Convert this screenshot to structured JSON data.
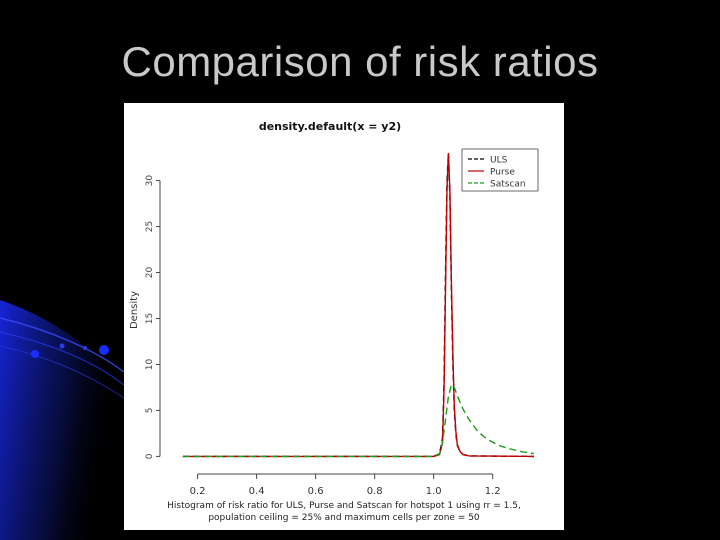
{
  "slide": {
    "title": "Comparison of risk ratios"
  },
  "colors": {
    "background": "#000000",
    "title_text": "#c9c9c9",
    "decor_blue": "#1a2cff"
  },
  "chart_data": {
    "type": "line",
    "title": "density.default(x = y2)",
    "xlabel": "Histogram of risk ratio for ULS, Purse and Satscan for hotspot 1 using rr = 1.5,",
    "xlabel_line2": "population ceiling = 25% and maximum cells per zone = 50",
    "ylabel": "Density",
    "xlim": [
      0.12,
      1.34
    ],
    "ylim": [
      -0.5,
      33
    ],
    "x_ticks": [
      0.2,
      0.4,
      0.6,
      0.8,
      1.0,
      1.2
    ],
    "x_tick_labels": [
      "0.2",
      "0.4",
      "0.6",
      "0.8",
      "1.0",
      "1.2"
    ],
    "y_ticks": [
      0,
      5,
      10,
      15,
      20,
      25,
      30
    ],
    "y_tick_labels": [
      "0",
      "5",
      "10",
      "15",
      "20",
      "25",
      "30"
    ],
    "legend_position": "top-right",
    "series": [
      {
        "name": "ULS",
        "color": "#000000",
        "dash": "6 4",
        "x": [
          0.15,
          1.0,
          1.02,
          1.03,
          1.035,
          1.04,
          1.045,
          1.05,
          1.055,
          1.06,
          1.065,
          1.07,
          1.075,
          1.08,
          1.09,
          1.1,
          1.12,
          1.34
        ],
        "y": [
          0,
          0,
          0.3,
          2,
          8,
          20,
          30,
          33,
          28,
          18,
          10,
          5,
          2.5,
          1.2,
          0.5,
          0.2,
          0.05,
          0
        ]
      },
      {
        "name": "Purse",
        "color": "#c00000",
        "dash": "",
        "x": [
          0.15,
          1.0,
          1.02,
          1.03,
          1.035,
          1.04,
          1.045,
          1.05,
          1.055,
          1.06,
          1.065,
          1.07,
          1.075,
          1.08,
          1.09,
          1.1,
          1.12,
          1.34
        ],
        "y": [
          0,
          0,
          0.2,
          1.5,
          7,
          18,
          29,
          33,
          29,
          19,
          11,
          5.5,
          2.8,
          1.3,
          0.5,
          0.2,
          0.05,
          0
        ]
      },
      {
        "name": "Satscan",
        "color": "#1a9a1a",
        "dash": "7 4",
        "x": [
          0.15,
          1.0,
          1.02,
          1.03,
          1.04,
          1.05,
          1.06,
          1.07,
          1.08,
          1.1,
          1.12,
          1.15,
          1.18,
          1.22,
          1.26,
          1.3,
          1.34
        ],
        "y": [
          0,
          0,
          0.3,
          1.5,
          4,
          6.5,
          7.8,
          7.5,
          6.6,
          5.1,
          4.0,
          2.7,
          1.9,
          1.2,
          0.8,
          0.5,
          0.3
        ]
      }
    ]
  }
}
